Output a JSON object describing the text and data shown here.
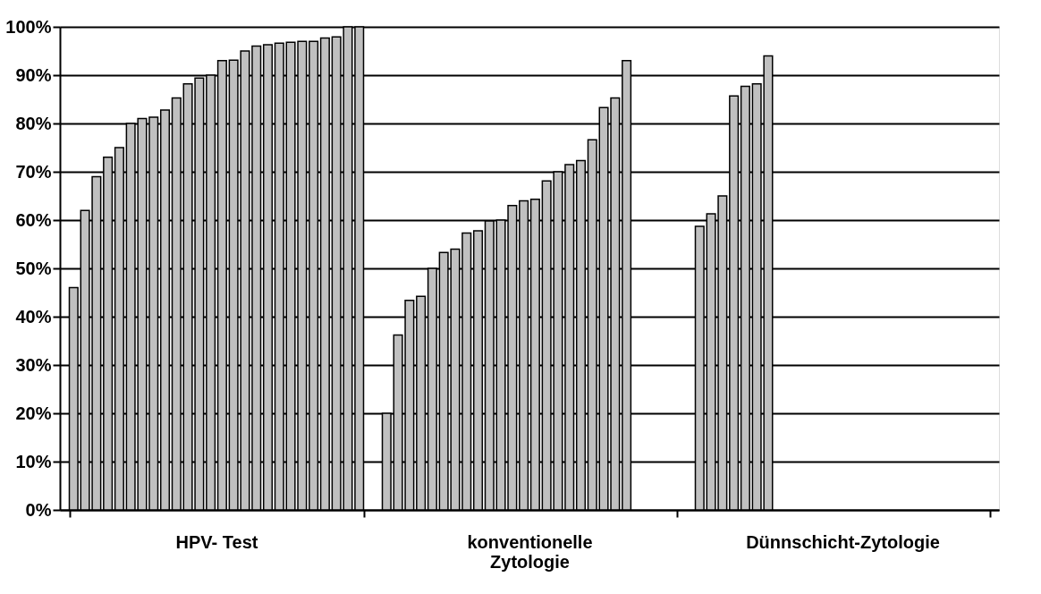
{
  "chart_data": {
    "type": "bar",
    "categories": [
      "HPV- Test",
      "konventionelle\nZytologie",
      "Dünnschicht-Zytologie"
    ],
    "ylim": [
      0,
      100
    ],
    "yticks": [
      {
        "value": 0,
        "label": "0%"
      },
      {
        "value": 10,
        "label": "10%"
      },
      {
        "value": 20,
        "label": "20%"
      },
      {
        "value": 30,
        "label": "30%"
      },
      {
        "value": 40,
        "label": "40%"
      },
      {
        "value": 50,
        "label": "50%"
      },
      {
        "value": 60,
        "label": "60%"
      },
      {
        "value": 70,
        "label": "70%"
      },
      {
        "value": 80,
        "label": "80%"
      },
      {
        "value": 90,
        "label": "90%"
      },
      {
        "value": 100,
        "label": "100%"
      }
    ],
    "grid": "y",
    "legend": false,
    "series": [
      {
        "color": "#c0c0c0",
        "values": [
          46,
          20,
          58.7
        ]
      },
      {
        "color": "#c0c0c0",
        "values": [
          62,
          36.2,
          61.3
        ]
      },
      {
        "color": "#c0c0c0",
        "values": [
          69,
          43.4,
          65
        ]
      },
      {
        "color": "#c0c0c0",
        "values": [
          73,
          44.2,
          85.7
        ]
      },
      {
        "color": "#c0c0c0",
        "values": [
          75,
          50,
          87.7
        ]
      },
      {
        "color": "#c0c0c0",
        "values": [
          80,
          53.3,
          88.2
        ]
      },
      {
        "color": "#c0c0c0",
        "values": [
          81,
          54,
          94
        ]
      },
      {
        "color": "#c0c0c0",
        "values": [
          81.3,
          57.3,
          null
        ]
      },
      {
        "color": "#c0c0c0",
        "values": [
          82.8,
          57.8,
          null
        ]
      },
      {
        "color": "#c0c0c0",
        "values": [
          85.3,
          59.8,
          null
        ]
      },
      {
        "color": "#c0c0c0",
        "values": [
          88.2,
          60,
          null
        ]
      },
      {
        "color": "#c0c0c0",
        "values": [
          89.4,
          63,
          null
        ]
      },
      {
        "color": "#c0c0c0",
        "values": [
          90,
          64,
          null
        ]
      },
      {
        "color": "#c0c0c0",
        "values": [
          93,
          64.3,
          null
        ]
      },
      {
        "color": "#c0c0c0",
        "values": [
          93.1,
          68.1,
          null
        ]
      },
      {
        "color": "#c0c0c0",
        "values": [
          95,
          70,
          null
        ]
      },
      {
        "color": "#c0c0c0",
        "values": [
          96,
          71.5,
          null
        ]
      },
      {
        "color": "#c0c0c0",
        "values": [
          96.3,
          72.3,
          null
        ]
      },
      {
        "color": "#c0c0c0",
        "values": [
          96.6,
          76.6,
          null
        ]
      },
      {
        "color": "#c0c0c0",
        "values": [
          96.8,
          83.3,
          null
        ]
      },
      {
        "color": "#c0c0c0",
        "values": [
          97,
          85.3,
          null
        ]
      },
      {
        "color": "#c0c0c0",
        "values": [
          97,
          93,
          null
        ]
      },
      {
        "color": "#c0c0c0",
        "values": [
          97.7,
          null,
          null
        ]
      },
      {
        "color": "#c0c0c0",
        "values": [
          97.9,
          null,
          null
        ]
      },
      {
        "color": "#c0c0c0",
        "values": [
          100,
          null,
          null
        ]
      },
      {
        "color": "#c0c0c0",
        "values": [
          100,
          null,
          null
        ]
      }
    ]
  }
}
